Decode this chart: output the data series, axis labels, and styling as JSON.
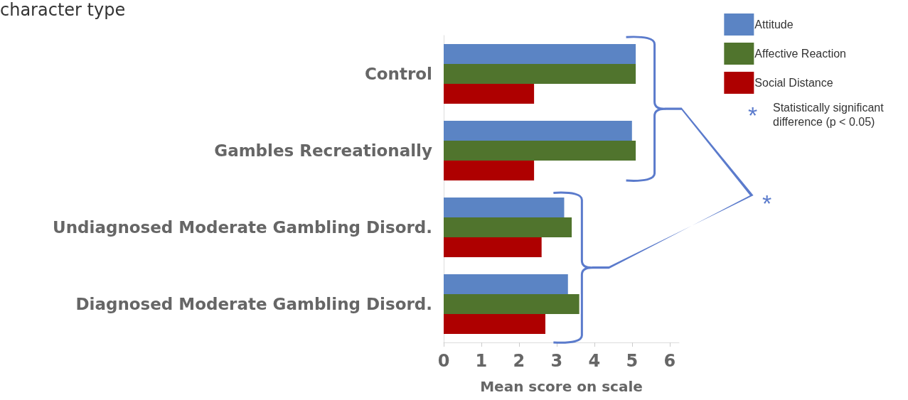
{
  "chart_data": {
    "type": "bar",
    "orientation": "horizontal",
    "title": "character type",
    "xlabel": "Mean score on scale",
    "categories": [
      "Control",
      "Gambles Recreationally",
      "Undiagnosed Moderate Gambling Disord.",
      "Diagnosed Moderate Gambling Disord."
    ],
    "series": [
      {
        "name": "Attitude",
        "color": "#5b84c4",
        "values": [
          5.1,
          5.0,
          3.2,
          3.3
        ]
      },
      {
        "name": "Affective Reaction",
        "color": "#50742d",
        "values": [
          5.1,
          5.1,
          3.4,
          3.6
        ]
      },
      {
        "name": "Social Distance",
        "color": "#ae0000",
        "values": [
          2.4,
          2.4,
          2.6,
          2.7
        ]
      }
    ],
    "xlim": [
      0,
      6.25
    ],
    "xticks": [
      0,
      1,
      2,
      3,
      4,
      5,
      6
    ],
    "grid": false,
    "legend": "top right",
    "annotations": [
      "*",
      "*",
      "Statistically significant difference (p < 0.05)"
    ]
  }
}
